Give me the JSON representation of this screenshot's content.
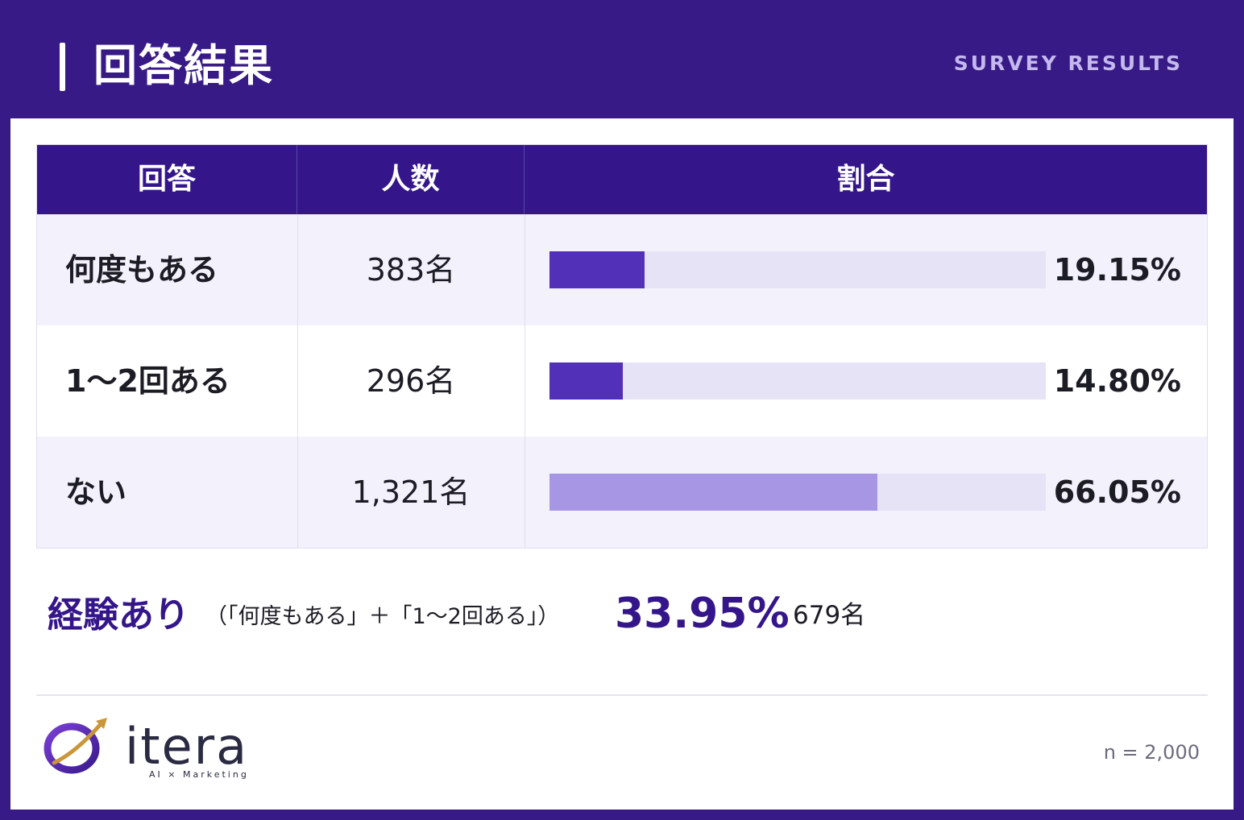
{
  "header": {
    "title": "回答結果",
    "subtitle": "SURVEY RESULTS"
  },
  "table": {
    "columns": [
      "回答",
      "人数",
      "割合"
    ]
  },
  "chart_data": {
    "type": "bar",
    "categories": [
      "何度もある",
      "1〜2回ある",
      "ない"
    ],
    "counts": [
      "383名",
      "296名",
      "1,321名"
    ],
    "values": [
      19.15,
      14.8,
      66.05
    ],
    "value_labels": [
      "19.15%",
      "14.80%",
      "66.05%"
    ],
    "xlim": [
      0,
      100
    ],
    "bar_colors": [
      "#5230b8",
      "#5230b8",
      "#a796e4"
    ],
    "track_color": "#e6e3f6"
  },
  "summary": {
    "label": "経験あり",
    "note": "（「何度もある」＋「1〜2回ある」）",
    "percent": "33.95%",
    "count": "679名"
  },
  "footer": {
    "logo_text": "itera",
    "logo_tagline": "AI × Marketing",
    "sample_size": "n = 2,000"
  }
}
